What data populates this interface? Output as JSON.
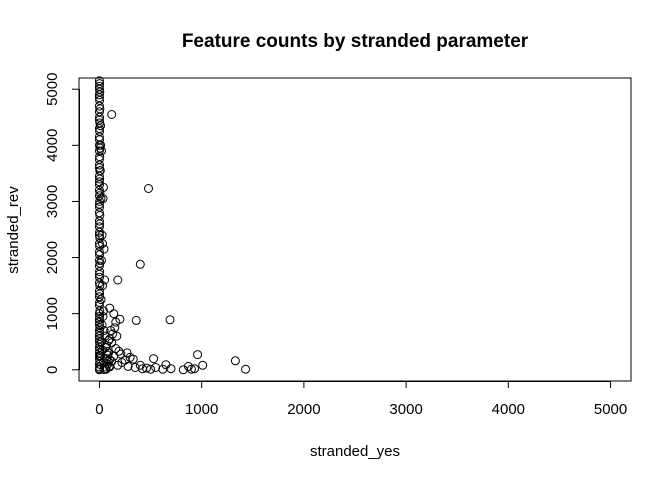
{
  "chart_data": {
    "type": "scatter",
    "title": "Feature counts by stranded parameter",
    "xlabel": "stranded_yes",
    "ylabel": "stranded_rev",
    "xlim": [
      -200,
      5200
    ],
    "ylim": [
      -200,
      5200
    ],
    "x_ticks": [
      0,
      1000,
      2000,
      3000,
      4000,
      5000
    ],
    "y_ticks": [
      0,
      1000,
      2000,
      3000,
      4000,
      5000
    ],
    "x_tick_labels": [
      "0",
      "1000",
      "2000",
      "3000",
      "4000",
      "5000"
    ],
    "y_tick_labels": [
      "0",
      "1000",
      "2000",
      "3000",
      "4000",
      "5000"
    ],
    "grid": false,
    "marker": "open-circle",
    "color": "#000000",
    "points": [
      [
        0,
        5150
      ],
      [
        2,
        5100
      ],
      [
        0,
        5050
      ],
      [
        1,
        5000
      ],
      [
        3,
        4950
      ],
      [
        0,
        4900
      ],
      [
        0,
        4850
      ],
      [
        2,
        4800
      ],
      [
        0,
        4700
      ],
      [
        4,
        4650
      ],
      [
        0,
        4600
      ],
      [
        1,
        4500
      ],
      [
        0,
        4450
      ],
      [
        3,
        4400
      ],
      [
        0,
        4300
      ],
      [
        2,
        4250
      ],
      [
        0,
        4150
      ],
      [
        1,
        4100
      ],
      [
        0,
        4000
      ],
      [
        5,
        3950
      ],
      [
        0,
        3900
      ],
      [
        2,
        3800
      ],
      [
        0,
        3750
      ],
      [
        1,
        3650
      ],
      [
        0,
        3600
      ],
      [
        3,
        3550
      ],
      [
        0,
        3450
      ],
      [
        2,
        3400
      ],
      [
        0,
        3350
      ],
      [
        1,
        3300
      ],
      [
        0,
        3200
      ],
      [
        4,
        3150
      ],
      [
        0,
        3100
      ],
      [
        2,
        3000
      ],
      [
        0,
        2950
      ],
      [
        1,
        2900
      ],
      [
        0,
        2800
      ],
      [
        3,
        2750
      ],
      [
        0,
        2650
      ],
      [
        2,
        2600
      ],
      [
        0,
        2550
      ],
      [
        1,
        2450
      ],
      [
        0,
        2400
      ],
      [
        3,
        2350
      ],
      [
        0,
        2250
      ],
      [
        2,
        2200
      ],
      [
        0,
        2100
      ],
      [
        1,
        2050
      ],
      [
        0,
        1950
      ],
      [
        4,
        1900
      ],
      [
        0,
        1850
      ],
      [
        2,
        1750
      ],
      [
        0,
        1700
      ],
      [
        1,
        1650
      ],
      [
        0,
        1550
      ],
      [
        3,
        1500
      ],
      [
        0,
        1400
      ],
      [
        2,
        1350
      ],
      [
        0,
        1300
      ],
      [
        1,
        1200
      ],
      [
        0,
        1150
      ],
      [
        3,
        1050
      ],
      [
        0,
        1000
      ],
      [
        2,
        950
      ],
      [
        0,
        900
      ],
      [
        1,
        850
      ],
      [
        0,
        800
      ],
      [
        4,
        750
      ],
      [
        0,
        700
      ],
      [
        2,
        650
      ],
      [
        0,
        600
      ],
      [
        1,
        550
      ],
      [
        0,
        500
      ],
      [
        3,
        450
      ],
      [
        0,
        400
      ],
      [
        2,
        350
      ],
      [
        0,
        300
      ],
      [
        1,
        250
      ],
      [
        0,
        200
      ],
      [
        3,
        150
      ],
      [
        0,
        100
      ],
      [
        2,
        50
      ],
      [
        0,
        0
      ],
      [
        1,
        20
      ],
      [
        10,
        4350
      ],
      [
        12,
        4000
      ],
      [
        8,
        3550
      ],
      [
        15,
        3050
      ],
      [
        20,
        3900
      ],
      [
        25,
        2400
      ],
      [
        30,
        2250
      ],
      [
        35,
        3050
      ],
      [
        40,
        3250
      ],
      [
        45,
        2150
      ],
      [
        50,
        1600
      ],
      [
        20,
        1950
      ],
      [
        30,
        1500
      ],
      [
        15,
        1250
      ],
      [
        40,
        1050
      ],
      [
        25,
        800
      ],
      [
        35,
        950
      ],
      [
        45,
        700
      ],
      [
        55,
        600
      ],
      [
        20,
        500
      ],
      [
        30,
        350
      ],
      [
        10,
        250
      ],
      [
        40,
        150
      ],
      [
        50,
        50
      ],
      [
        60,
        400
      ],
      [
        70,
        200
      ],
      [
        80,
        100
      ],
      [
        90,
        300
      ],
      [
        100,
        50
      ],
      [
        60,
        20
      ],
      [
        120,
        4550
      ],
      [
        480,
        3230
      ],
      [
        400,
        1880
      ],
      [
        180,
        1600
      ],
      [
        100,
        1100
      ],
      [
        140,
        1000
      ],
      [
        160,
        850
      ],
      [
        200,
        900
      ],
      [
        360,
        880
      ],
      [
        690,
        890
      ],
      [
        150,
        750
      ],
      [
        130,
        640
      ],
      [
        170,
        600
      ],
      [
        100,
        550
      ],
      [
        120,
        480
      ],
      [
        160,
        380
      ],
      [
        190,
        330
      ],
      [
        210,
        280
      ],
      [
        270,
        300
      ],
      [
        300,
        220
      ],
      [
        250,
        170
      ],
      [
        330,
        190
      ],
      [
        220,
        130
      ],
      [
        180,
        80
      ],
      [
        280,
        60
      ],
      [
        350,
        40
      ],
      [
        400,
        80
      ],
      [
        420,
        20
      ],
      [
        460,
        30
      ],
      [
        500,
        10
      ],
      [
        530,
        200
      ],
      [
        550,
        40
      ],
      [
        620,
        10
      ],
      [
        650,
        90
      ],
      [
        700,
        20
      ],
      [
        820,
        0
      ],
      [
        870,
        60
      ],
      [
        900,
        10
      ],
      [
        930,
        20
      ],
      [
        960,
        270
      ],
      [
        1010,
        80
      ],
      [
        1330,
        160
      ],
      [
        1430,
        10
      ],
      [
        140,
        240
      ],
      [
        120,
        150
      ],
      [
        100,
        180
      ],
      [
        80,
        260
      ],
      [
        75,
        330
      ],
      [
        90,
        520
      ],
      [
        110,
        700
      ],
      [
        70,
        430
      ],
      [
        85,
        150
      ],
      [
        95,
        60
      ],
      [
        65,
        10
      ],
      [
        45,
        5
      ]
    ]
  }
}
